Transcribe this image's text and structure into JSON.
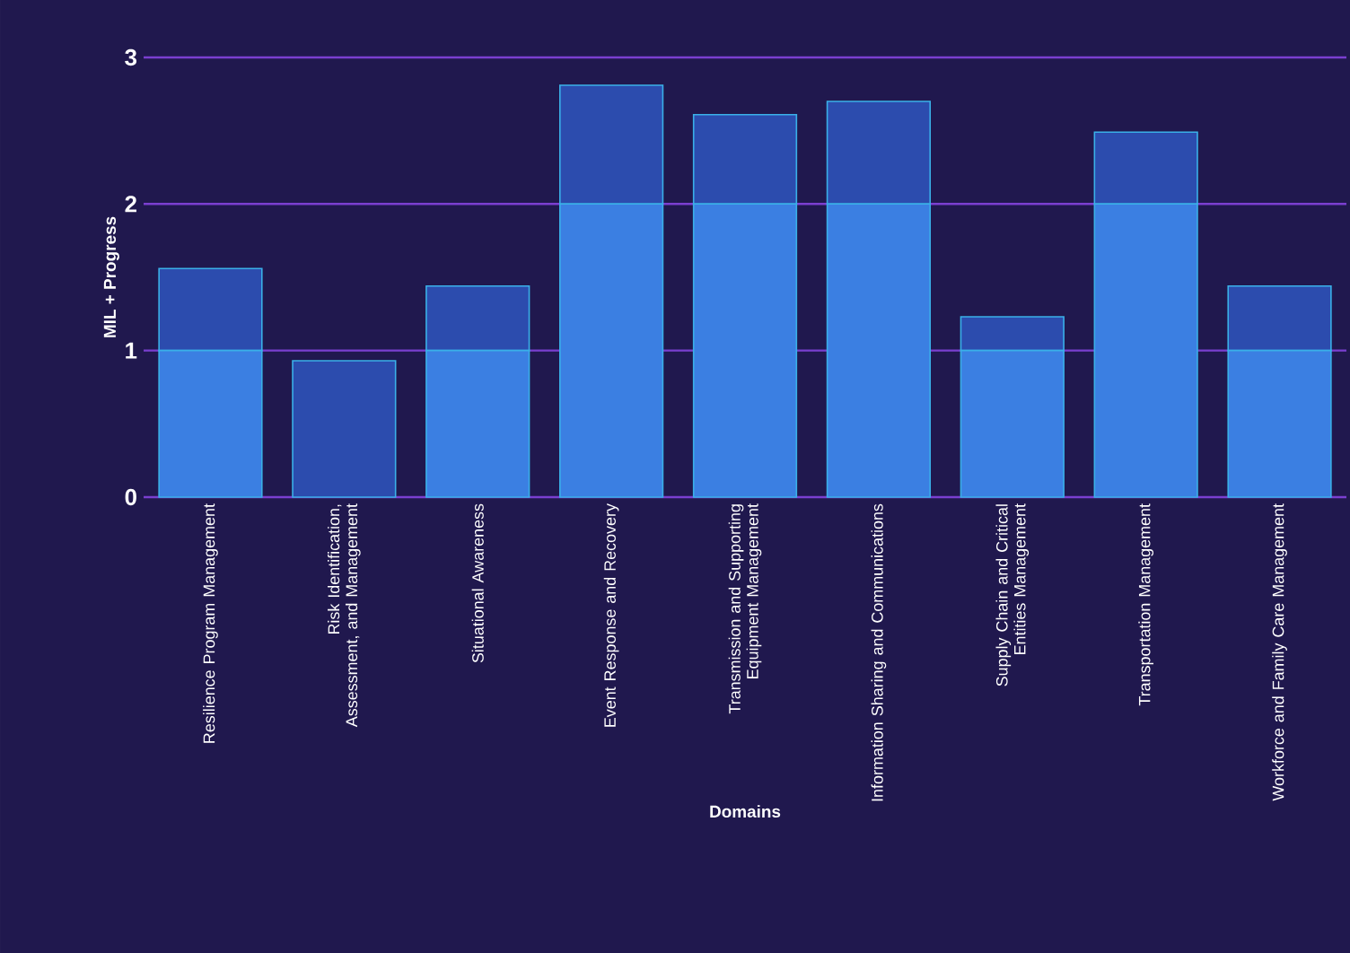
{
  "chart_data": {
    "type": "bar",
    "stacked": true,
    "xlabel": "Domains",
    "ylabel": "MIL + Progress",
    "categories": [
      "Resilience Program Management",
      "Risk Identification, Assessment, and Management",
      "Situational Awareness",
      "Event Response and Recovery",
      "Transmission and Supporting Equipment Management",
      "Information Sharing and Communications",
      "Supply Chain and Critical Entities Management",
      "Transportation Management",
      "Workforce and Family Care Management"
    ],
    "series": [
      {
        "color": "#3b7fe2",
        "values": [
          1,
          0,
          1,
          2,
          2,
          2,
          1,
          2,
          1
        ]
      },
      {
        "color": "#2c4cae",
        "values": [
          0.56,
          0.93,
          0.44,
          0.81,
          0.61,
          0.7,
          0.23,
          0.49,
          0.44
        ]
      }
    ],
    "ylim": [
      0,
      3
    ],
    "yticks": [
      0,
      1,
      2,
      3
    ],
    "grid": "y"
  }
}
